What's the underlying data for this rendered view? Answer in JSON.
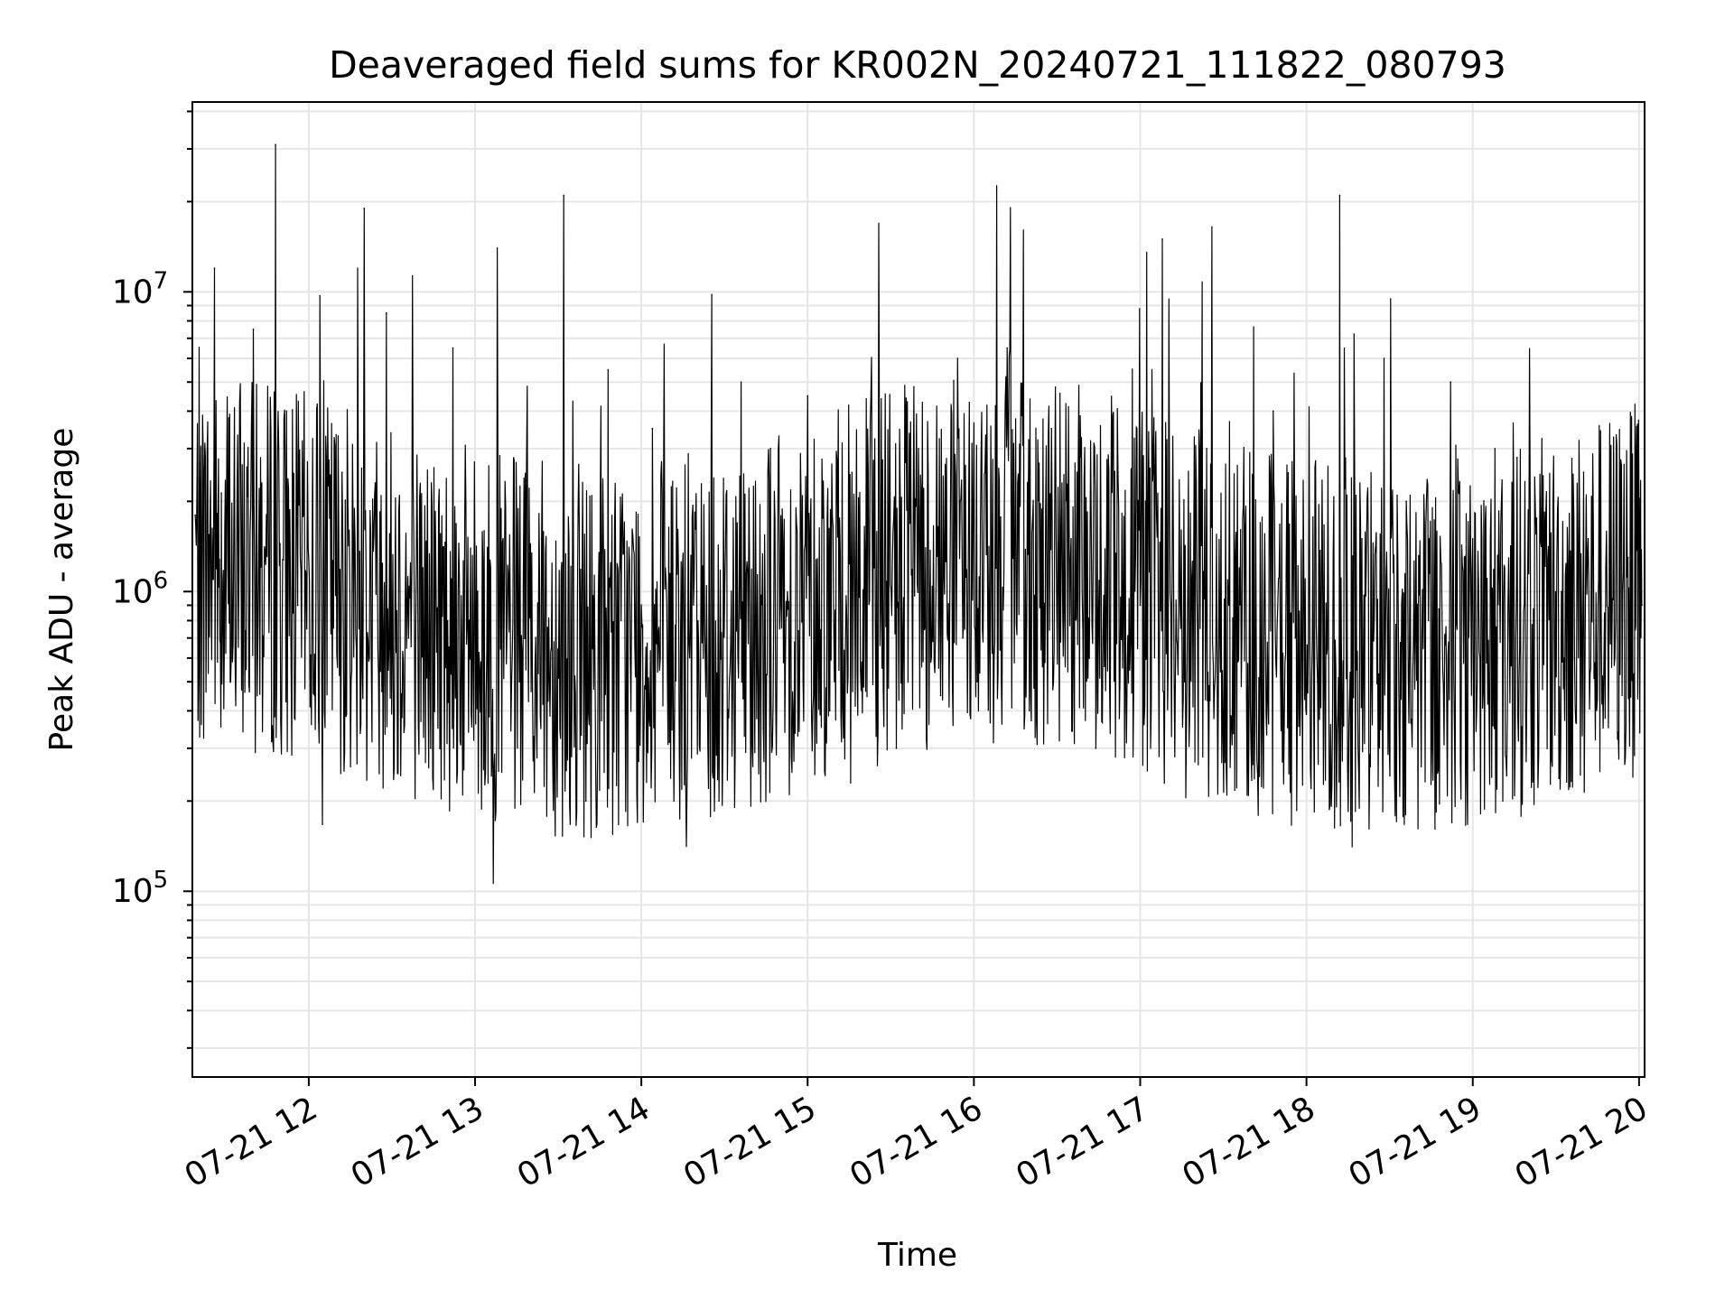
{
  "chart_data": {
    "type": "line",
    "title": "Deaveraged field sums for KR002N_20240721_111822_080793",
    "xlabel": "Time",
    "ylabel": "Peak ADU - average",
    "y_scale": "log",
    "ylim": [
      24000,
      43000000
    ],
    "xlim": [
      "2024-07-21 11:18",
      "2024-07-21 20:02"
    ],
    "grid": true,
    "legend": "none",
    "line_color": "#000000",
    "x_ticks": [
      "07-21 12",
      "07-21 13",
      "07-21 14",
      "07-21 15",
      "07-21 16",
      "07-21 17",
      "07-21 18",
      "07-21 19",
      "07-21 20"
    ],
    "y_ticks": [
      {
        "base": "10",
        "exp": "5",
        "value": 100000
      },
      {
        "base": "10",
        "exp": "6",
        "value": 1000000
      },
      {
        "base": "10",
        "exp": "7",
        "value": 10000000
      }
    ],
    "series": [
      {
        "x": [
          "2024-07-21 11:19",
          "2024-07-21 11:26",
          "2024-07-21 11:32",
          "2024-07-21 11:40",
          "2024-07-21 11:48",
          "2024-07-21 11:56",
          "2024-07-21 12:04",
          "2024-07-21 12:12",
          "2024-07-21 12:20",
          "2024-07-21 12:28",
          "2024-07-21 12:36",
          "2024-07-21 12:44",
          "2024-07-21 12:52",
          "2024-07-21 13:00",
          "2024-07-21 13:08",
          "2024-07-21 13:16",
          "2024-07-21 13:24",
          "2024-07-21 13:32",
          "2024-07-21 13:40",
          "2024-07-21 13:48",
          "2024-07-21 13:56",
          "2024-07-21 14:04",
          "2024-07-21 14:12",
          "2024-07-21 14:20",
          "2024-07-21 14:28",
          "2024-07-21 14:36",
          "2024-07-21 14:44",
          "2024-07-21 14:52",
          "2024-07-21 15:00",
          "2024-07-21 15:08",
          "2024-07-21 15:16",
          "2024-07-21 15:24",
          "2024-07-21 15:32",
          "2024-07-21 15:40",
          "2024-07-21 15:48",
          "2024-07-21 15:56",
          "2024-07-21 16:04",
          "2024-07-21 16:12",
          "2024-07-21 16:20",
          "2024-07-21 16:28",
          "2024-07-21 16:36",
          "2024-07-21 16:44",
          "2024-07-21 16:52",
          "2024-07-21 17:00",
          "2024-07-21 17:08",
          "2024-07-21 17:16",
          "2024-07-21 17:24",
          "2024-07-21 17:32",
          "2024-07-21 17:40",
          "2024-07-21 17:48",
          "2024-07-21 17:56",
          "2024-07-21 18:04",
          "2024-07-21 18:12",
          "2024-07-21 18:20",
          "2024-07-21 18:28",
          "2024-07-21 18:36",
          "2024-07-21 18:44",
          "2024-07-21 18:52",
          "2024-07-21 19:00",
          "2024-07-21 19:08",
          "2024-07-21 19:16",
          "2024-07-21 19:24",
          "2024-07-21 19:32",
          "2024-07-21 19:40",
          "2024-07-21 19:48",
          "2024-07-21 19:56",
          "2024-07-21 20:01"
        ],
        "values": [
          1800000,
          12000000,
          600000,
          7500000,
          31000000,
          900000,
          9700000,
          2500000,
          19000000,
          8500000,
          700000,
          300000,
          6500000,
          900000,
          14000000,
          500000,
          1500000,
          21000000,
          200000,
          5500000,
          600000,
          3500000,
          400000,
          1000000,
          200000,
          5000000,
          350000,
          600000,
          4500000,
          400000,
          2500000,
          1200000,
          300000,
          3000000,
          450000,
          700000,
          2500000,
          6500000,
          400000,
          3500000,
          600000,
          300000,
          2500000,
          900000,
          15000000,
          500000,
          3000000,
          900000,
          300000,
          4000000,
          700000,
          500000,
          21000000,
          1500000,
          6000000,
          2000000,
          800000,
          5000000,
          1500000,
          3000000,
          2800000,
          700000,
          1000000,
          2500000,
          1200000,
          1300000,
          900000
        ]
      }
    ]
  }
}
